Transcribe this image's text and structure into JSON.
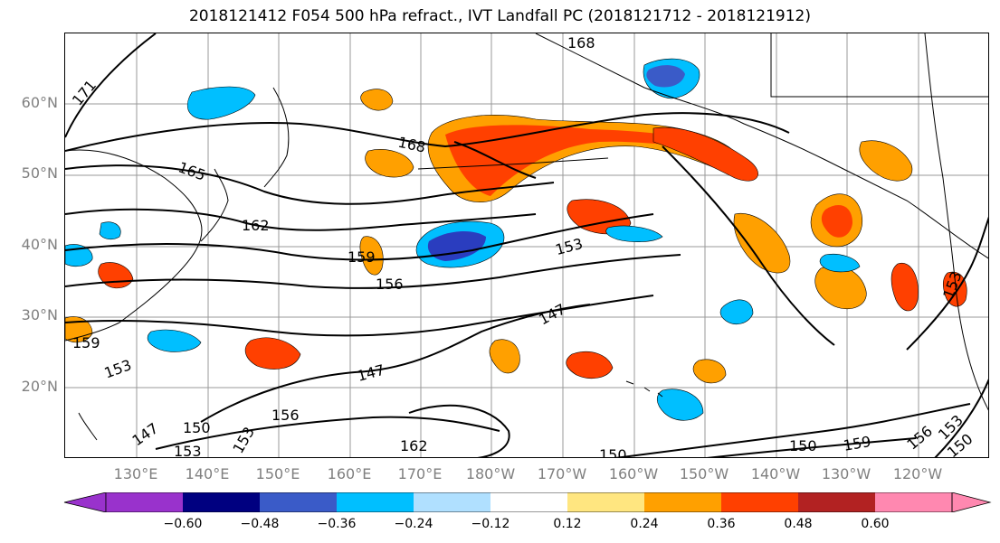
{
  "title": "2018121412 F054 500 hPa refract., IVT Landfall PC (2018121712 - 2018121912)",
  "map": {
    "lat_labels": [
      "60°N",
      "50°N",
      "40°N",
      "30°N",
      "20°N"
    ],
    "lon_labels": [
      "130°E",
      "140°E",
      "150°E",
      "160°E",
      "170°E",
      "180°W",
      "170°W",
      "160°W",
      "150°W",
      "140°W",
      "130°W",
      "120°W"
    ],
    "contour_labels": [
      "171",
      "168",
      "168",
      "165",
      "162",
      "159",
      "156",
      "153",
      "147",
      "147",
      "150",
      "153",
      "153",
      "153",
      "159",
      "156",
      "153",
      "150",
      "150",
      "147",
      "153",
      "159",
      "150",
      "156",
      "162"
    ],
    "fill_colors": {
      "strong_negative": "#2a3dbf",
      "negative": "#00bfff",
      "weak_negative": "#aee0ff",
      "weak_positive": "#ffe680",
      "positive": "#ffa000",
      "strong_positive": "#ff4000"
    },
    "land_line_color": "#000000",
    "grid": true
  },
  "colorbar": {
    "colors": [
      "#9932cc",
      "#000080",
      "#3a5bc8",
      "#00bfff",
      "#b0e0ff",
      "#ffffff",
      "#ffe680",
      "#ffa000",
      "#ff4000",
      "#b22222",
      "#ff88b0"
    ],
    "tick_labels": [
      "−0.60",
      "−0.48",
      "−0.36",
      "−0.24",
      "−0.12",
      "0.12",
      "0.24",
      "0.36",
      "0.48",
      "0.60"
    ],
    "extend": "both"
  }
}
